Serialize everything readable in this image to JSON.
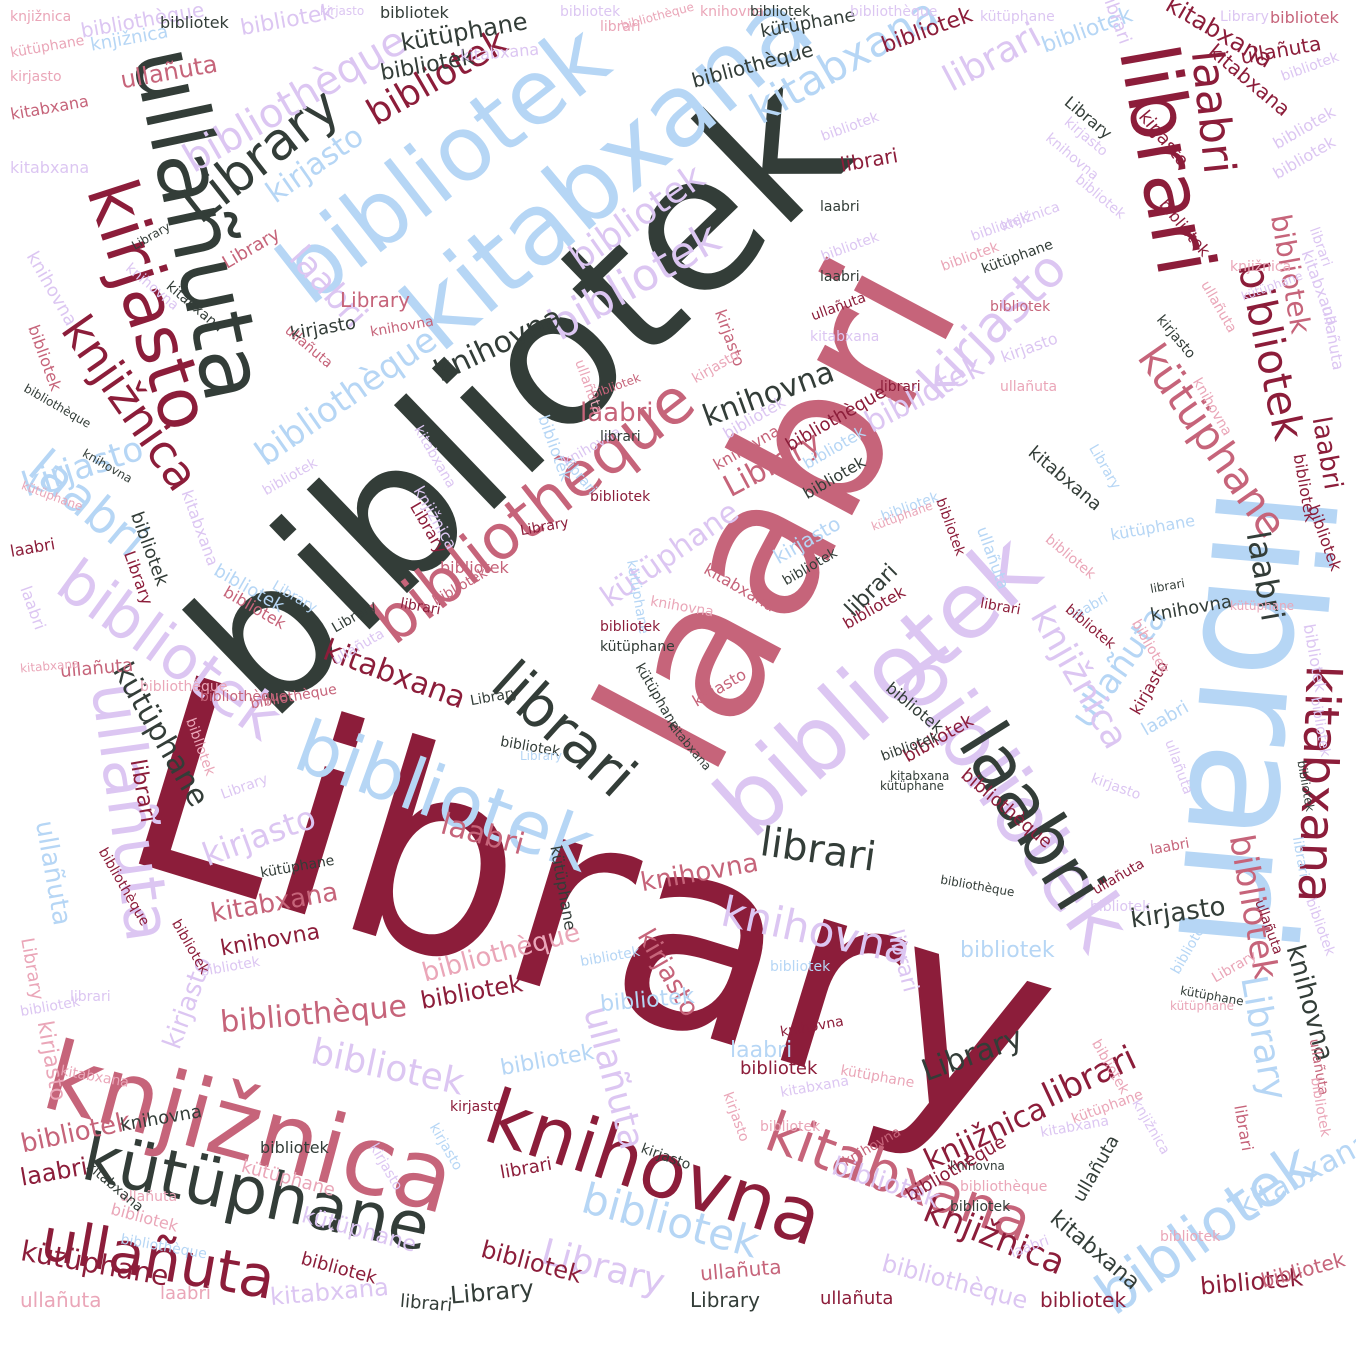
{
  "palette": {
    "wine": "#8c1d3a",
    "charcoal": "#333d38",
    "rose": "#c6647a",
    "light_blue": "#b6d6f5",
    "lavender": "#dcc6f2",
    "pink": "#eaa6b8",
    "mid_red": "#a83a5a"
  },
  "words": [
    "Library",
    "bibliotek",
    "laabri",
    "librari",
    "bibliotek",
    "kitabxana",
    "bibliotek",
    "knjižnica",
    "knihovna",
    "kütüphane",
    "ullañuta",
    "bibliothèque",
    "Library",
    "kirjasto",
    "bibliotek",
    "bibliotek",
    "knjižnica",
    "kütüphane",
    "ullañuta",
    "kirjasto",
    "bibliotek",
    "librari",
    "kitabxana",
    "laabri",
    "bibliotek",
    "laabri",
    "bibliotek",
    "librari",
    "knihovna",
    "bibliotek",
    "bibliotek",
    "bibliotek",
    "kitabxana",
    "bibliotek",
    "knjižnica",
    "ullañuta",
    "laabri",
    "librari",
    "knjižnica",
    "bibliotek",
    "kirjasto",
    "kütüphane",
    "Library",
    "laabri",
    "knihovna",
    "kirjasto",
    "kütüphane",
    "bibliothèque",
    "kitabxana",
    "bibliotek",
    "bibliotek",
    "knjižnica",
    "ullañuta",
    "kütüphane",
    "ullañuta",
    "bibliotek",
    "bibliotek",
    "kirjasto",
    "bibliotek",
    "bibliotek",
    "knihovna",
    "kütüphane",
    "knjižnica",
    "Library",
    "bibliotek",
    "laabri",
    "librari",
    "Library",
    "knjižnica",
    "kütüphane",
    "laabri",
    "bibliothèque",
    "ullañuta",
    "knjižnica",
    "Library",
    "kirjasto",
    "laabri",
    "ullañuta",
    "kirjasto",
    "knihovna",
    "librari",
    "knjižnica",
    "bibliotek",
    "Library",
    "kitabxana",
    "bibliothèque",
    "bibliotek",
    "kütüphane",
    "bibliotek",
    "laabri",
    "knihovna",
    "kitabxana",
    "kütüphane",
    "ullañuta",
    "bibliotek",
    "kirjasto",
    "librari",
    "Library",
    "kitabxana",
    "knjižnica",
    "kütüphane",
    "laabri",
    "bibliotek",
    "librari",
    "bibliotek",
    "kirjasto",
    "ullañuta",
    "knihovna",
    "Library",
    "bibliotek",
    "librari",
    "kirjasto",
    "bibliothèque",
    "kitabxana",
    "kütüphane",
    "knjižnica",
    "laabri",
    "knihovna",
    "bibliotek",
    "bibliotek",
    "ullañuta",
    "Library",
    "bibliotek",
    "librari",
    "kirjasto",
    "bibliotek",
    "knjižnica",
    "laabri",
    "bibliotek",
    "Library",
    "kütüphane",
    "bibliotek",
    "knihovna",
    "bibliotek",
    "bibliotek",
    "bibliotek",
    "librari",
    "kirjasto",
    "bibliotek",
    "kitabxana",
    "bibliotek",
    "laabri",
    "bibliotek",
    "knihovna",
    "librari",
    "knjižnica",
    "ullañuta",
    "Library",
    "bibliotek",
    "bibliotek",
    "bibliotek",
    "bibliotek",
    "bibliotek",
    "kirjasto",
    "librari",
    "Library",
    "bibliotek",
    "bibliotek",
    "kütüphane",
    "knihovna",
    "kitabxana",
    "bibliotek",
    "bibliotek",
    "bibliotek",
    "bibliotek",
    "knjižnica",
    "bibliotek",
    "Library",
    "ullañuta",
    "bibliotek",
    "bibliotek"
  ]
}
